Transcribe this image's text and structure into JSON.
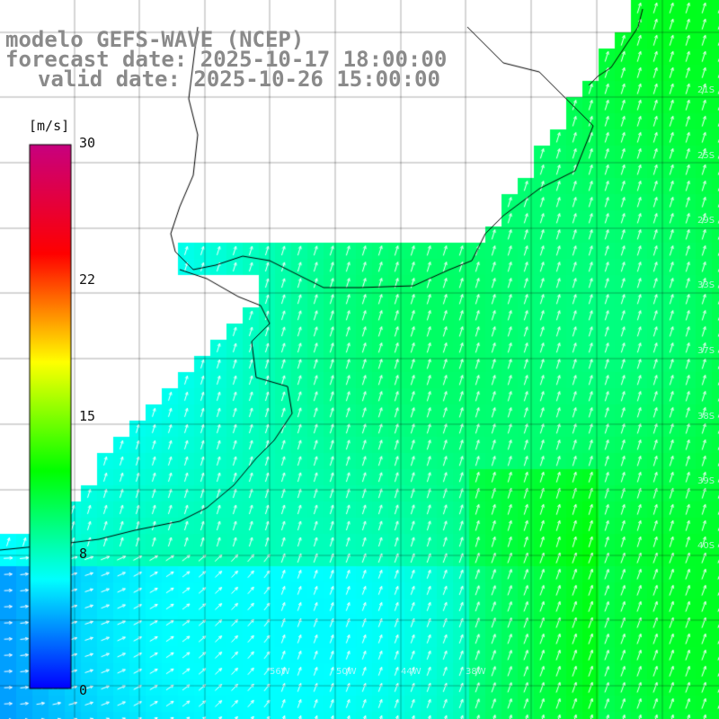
{
  "header": {
    "line1": "modelo GEFS-WAVE (NCEP)",
    "line2": "forecast date: 2025-10-17 18:00:00",
    "line3": "valid date: 2025-10-26 15:00:00"
  },
  "colorbar": {
    "unit": "[m/s]",
    "ticks": [
      "30",
      "22",
      "15",
      "8",
      "0"
    ],
    "stops": [
      "#0000ff",
      "#00ffff",
      "#00ff00",
      "#ffff00",
      "#ff0000",
      "#c8007f"
    ]
  },
  "graticule": {
    "lat_labels": [
      "21S",
      "25S",
      "29S",
      "33S",
      "37S",
      "38S",
      "39S",
      "40S"
    ],
    "lon_labels": [
      "56W",
      "50W",
      "44W",
      "38W"
    ]
  },
  "colors": {
    "land": "#ffffff",
    "grid": "#000000",
    "coast": "#000000",
    "arrow": "#ffffff",
    "title": "#8a8a8a"
  }
}
